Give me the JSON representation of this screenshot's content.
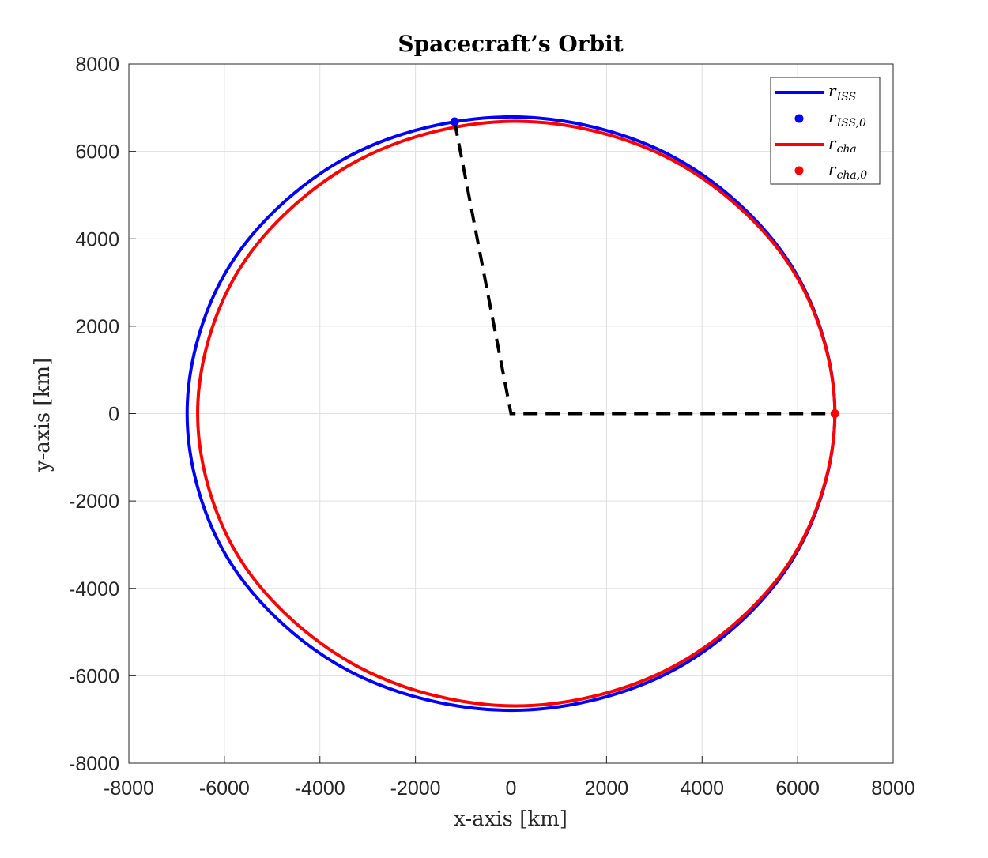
{
  "chart_data": {
    "type": "line",
    "title": "Spacecraft’s Orbit",
    "xlabel": "x-axis [km]",
    "ylabel": "y-axis [km]",
    "xlim": [
      -8000,
      8000
    ],
    "ylim": [
      -8000,
      8000
    ],
    "xticks": [
      -8000,
      -6000,
      -4000,
      -2000,
      0,
      2000,
      4000,
      6000,
      8000
    ],
    "yticks": [
      -8000,
      -6000,
      -4000,
      -2000,
      0,
      2000,
      4000,
      6000,
      8000
    ],
    "xtick_labels": [
      "-8000",
      "-6000",
      "-4000",
      "-2000",
      "0",
      "2000",
      "4000",
      "6000",
      "8000"
    ],
    "ytick_labels": [
      "-8000",
      "-6000",
      "-4000",
      "-2000",
      "0",
      "2000",
      "4000",
      "6000",
      "8000"
    ],
    "grid": true,
    "legend_position": "top-right",
    "series": [
      {
        "name": "r_ISS",
        "kind": "orbit",
        "color": "#0000ff",
        "x": [
          6780,
          5860,
          3370,
          0,
          -3390,
          -5880,
          -6780,
          -5880,
          -3390,
          0,
          3370,
          5860,
          6780
        ],
        "y": [
          0,
          3400,
          5890,
          6790,
          5890,
          3400,
          0,
          -3400,
          -5890,
          -6790,
          -5890,
          -3400,
          0
        ]
      },
      {
        "name": "r_ISS,0",
        "kind": "point",
        "color": "#0000ff",
        "x": [
          -1180
        ],
        "y": [
          6680
        ]
      },
      {
        "name": "r_cha",
        "kind": "orbit",
        "color": "#ff0000",
        "x": [
          6780,
          5860,
          3380,
          100,
          -3190,
          -5660,
          -6560,
          -5660,
          -3190,
          100,
          3380,
          5860,
          6780
        ],
        "y": [
          0,
          3350,
          5800,
          6690,
          5800,
          3350,
          0,
          -3350,
          -5800,
          -6690,
          -5800,
          -3350,
          0
        ]
      },
      {
        "name": "r_cha,0",
        "kind": "point",
        "color": "#ff0000",
        "x": [
          6780
        ],
        "y": [
          0
        ]
      },
      {
        "name": "",
        "kind": "dashed",
        "color": "#000000",
        "x": [
          -1180,
          0,
          6780
        ],
        "y": [
          6680,
          0,
          0
        ]
      }
    ]
  },
  "legend": {
    "entries": [
      {
        "base": "r",
        "sub": "ISS",
        "marker": "line",
        "color": "#0000ff"
      },
      {
        "base": "r",
        "sub": "ISS,0",
        "marker": "dot",
        "color": "#0000ff"
      },
      {
        "base": "r",
        "sub": "cha",
        "marker": "line",
        "color": "#ff0000"
      },
      {
        "base": "r",
        "sub": "cha,0",
        "marker": "dot",
        "color": "#ff0000"
      }
    ]
  }
}
